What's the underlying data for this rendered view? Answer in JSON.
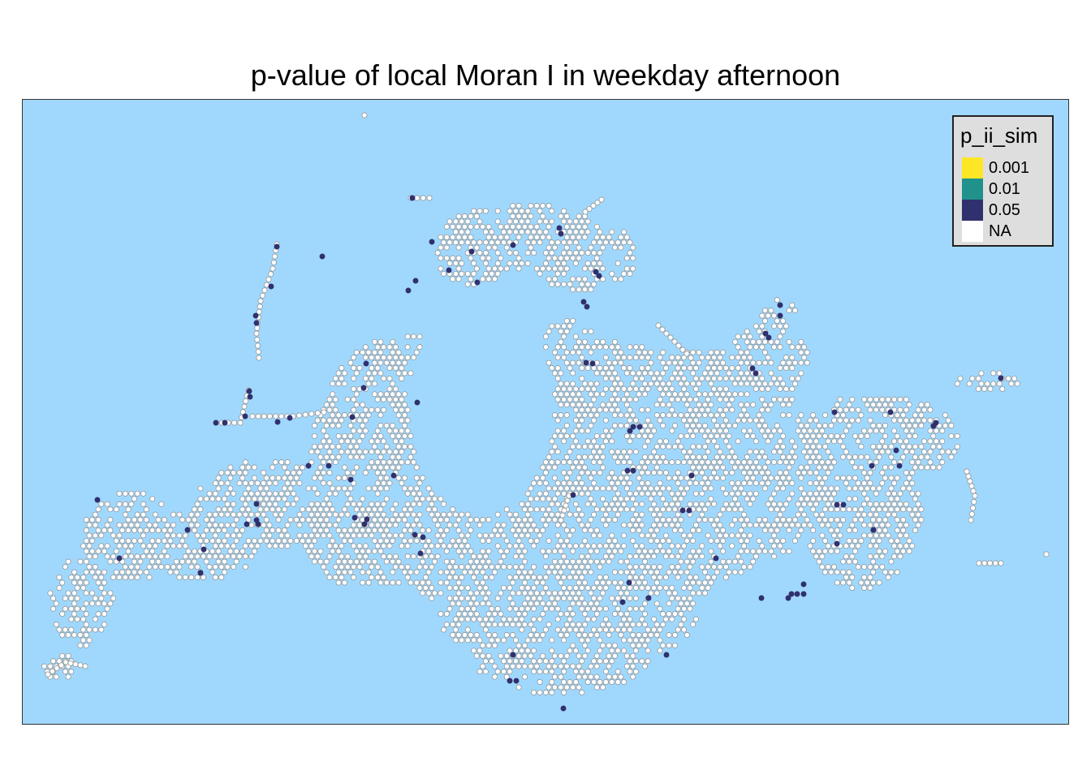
{
  "title": "p-value of local Moran I in weekday afternoon",
  "map": {
    "background_color": "#a0d8fd",
    "cell_fill_default": "#ffffff",
    "cell_stroke": "#8a8a8a"
  },
  "legend": {
    "title": "p_ii_sim",
    "items": [
      {
        "label": "0.001",
        "color": "#fde725"
      },
      {
        "label": "0.01",
        "color": "#21918c"
      },
      {
        "label": "0.05",
        "color": "#31306e"
      },
      {
        "label": "NA",
        "color": "#ffffff"
      }
    ]
  }
}
